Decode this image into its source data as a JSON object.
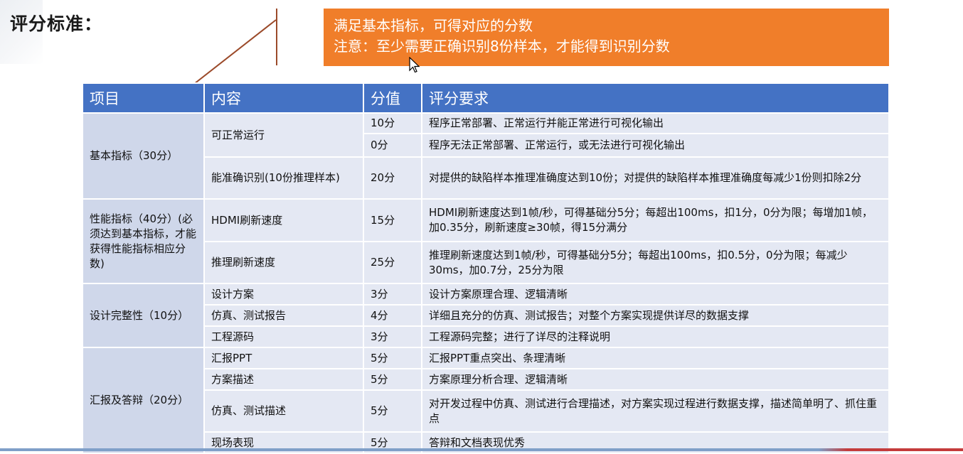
{
  "title": "评分标准：",
  "callout": {
    "line1": "满足基本指标，可得对应的分数",
    "line2": "注意：至少需要正确识别8份样本，才能得到识别分数"
  },
  "table": {
    "headers": [
      "项目",
      "内容",
      "分值",
      "评分要求"
    ],
    "categories": [
      "基本指标（30分）",
      "性能指标（40分）(必须达到基本指标，才能获得性能指标相应分数)",
      "设计完整性（10分）",
      "汇报及答辩（20分）"
    ],
    "rows": [
      {
        "item": "可正常运行",
        "score": "10分",
        "req": "程序正常部署、正常运行并能正常进行可视化输出"
      },
      {
        "item": "",
        "score": "0分",
        "req": "程序无法正常部署、正常运行，或无法进行可视化输出"
      },
      {
        "item": "能准确识别(10份推理样本)",
        "score": "20分",
        "req": "对提供的缺陷样本推理准确度达到10份；对提供的缺陷样本推理准确度每减少1份则扣除2分"
      },
      {
        "item": "HDMI刷新速度",
        "score": "15分",
        "req": "HDMI刷新速度达到1帧/秒，可得基础分5分；每超出100ms，扣1分，0分为限；每增加1帧，加0.35分，刷新速度≥30帧，得15分满分"
      },
      {
        "item": "推理刷新速度",
        "score": "25分",
        "req": "推理刷新速度达到1帧/秒，可得基础分5分；每超出100ms，扣0.5分，0分为限；每减少30ms，加0.7分，25分为限"
      },
      {
        "item": "设计方案",
        "score": "3分",
        "req": "设计方案原理合理、逻辑清晰"
      },
      {
        "item": "仿真、测试报告",
        "score": "4分",
        "req": "详细且充分的仿真、测试报告；对整个方案实现提供详尽的数据支撑"
      },
      {
        "item": "工程源码",
        "score": "3分",
        "req": "工程源码完整；进行了详尽的注释说明"
      },
      {
        "item": "汇报PPT",
        "score": "5分",
        "req": "汇报PPT重点突出、条理清晰"
      },
      {
        "item": "方案描述",
        "score": "5分",
        "req": "方案原理分析合理、逻辑清晰"
      },
      {
        "item": "仿真、测试描述",
        "score": "5分",
        "req": "对开发过程中仿真、测试进行合理描述，对方案实现过程进行数据支撑，描述简单明了、抓住重点"
      },
      {
        "item": "现场表现",
        "score": "5分",
        "req": "答辩和文档表现优秀"
      }
    ]
  },
  "icons": {
    "cursor": "mouse-pointer-icon"
  },
  "colors": {
    "header": "#4472c4",
    "callout": "#f07e2a",
    "category_cell": "#cfd7ea",
    "body_cell": "#e4e8f3"
  }
}
